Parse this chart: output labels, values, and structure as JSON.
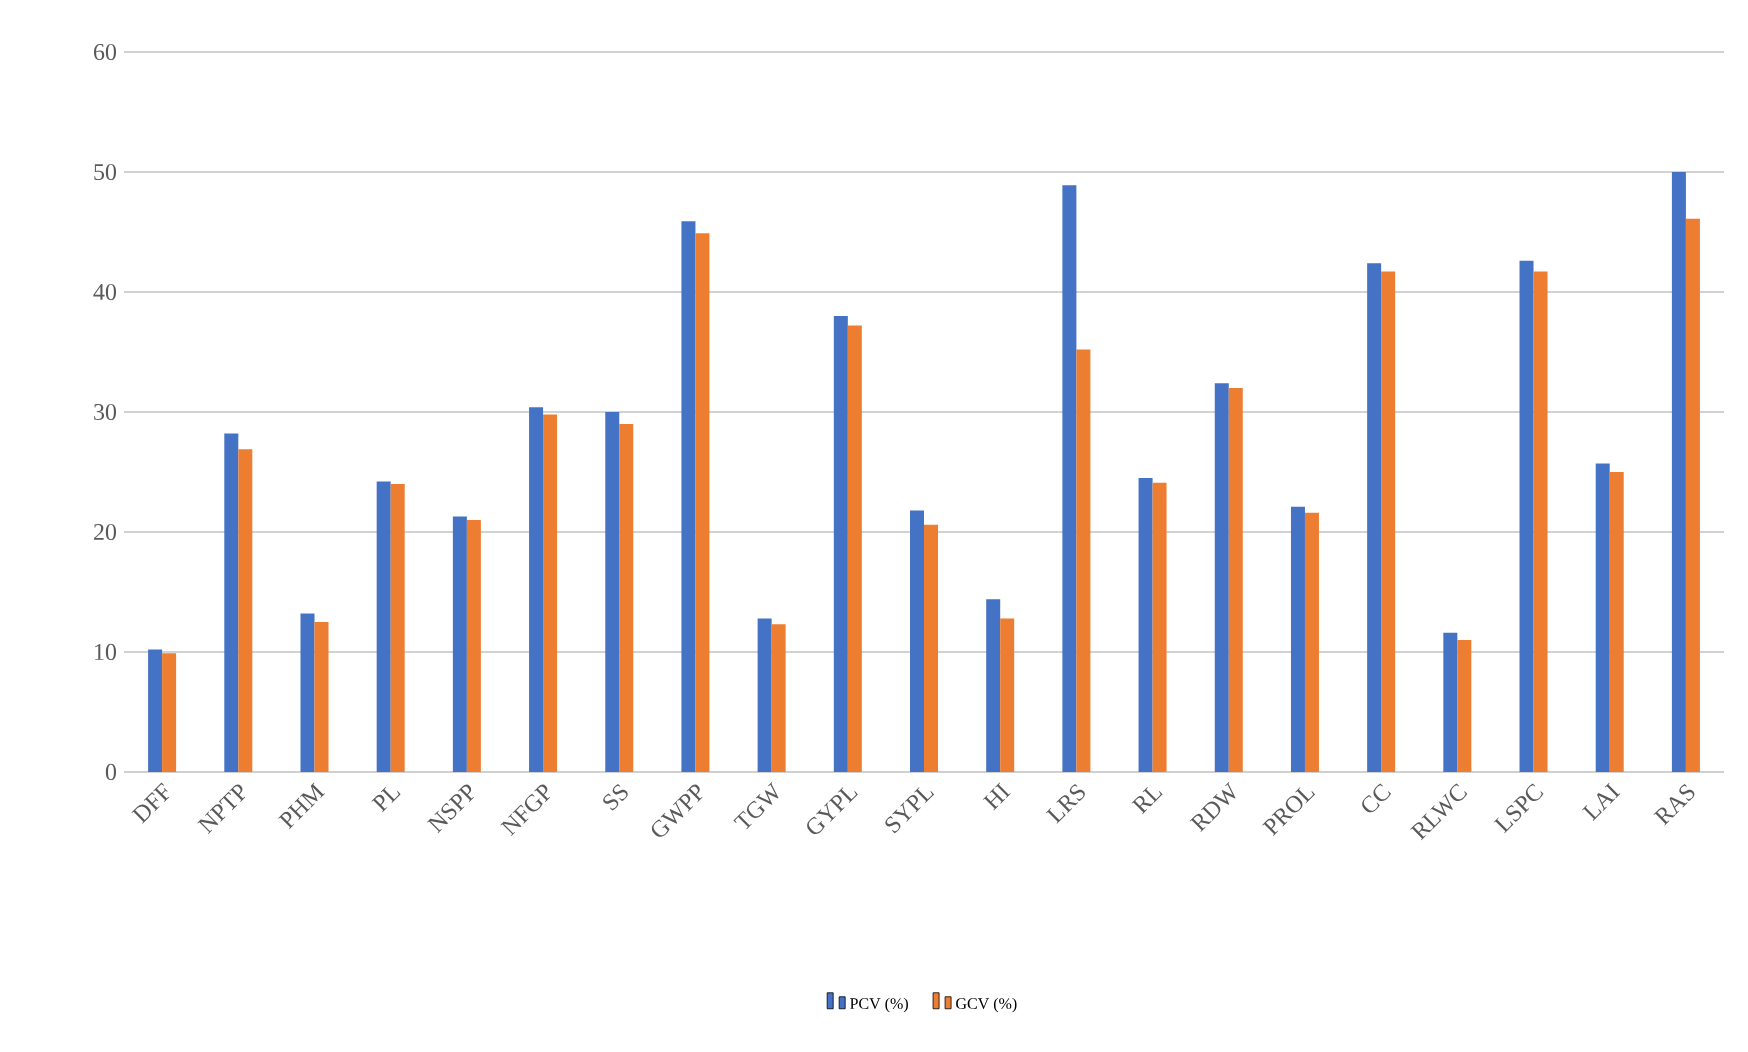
{
  "chart_data": {
    "type": "bar",
    "categories": [
      "DFF",
      "NPTP",
      "PHM",
      "PL",
      "NSPP",
      "NFGP",
      "SS",
      "GWPP",
      "TGW",
      "GYPL",
      "SYPL",
      "HI",
      "LRS",
      "RL",
      "RDW",
      "PROL",
      "CC",
      "RLWC",
      "LSPC",
      "LAI",
      "RAS"
    ],
    "series": [
      {
        "name": "PCV (%)",
        "color": "#4472c4",
        "values": [
          10.2,
          28.2,
          13.2,
          24.2,
          21.3,
          30.4,
          30.0,
          45.9,
          12.8,
          38.0,
          21.8,
          14.4,
          48.9,
          24.5,
          32.4,
          22.1,
          42.4,
          11.6,
          42.6,
          25.7,
          50.0
        ]
      },
      {
        "name": "GCV (%)",
        "color": "#ed7d31",
        "values": [
          9.9,
          26.9,
          12.5,
          24.0,
          21.0,
          29.8,
          29.0,
          44.9,
          12.3,
          37.2,
          20.6,
          12.8,
          35.2,
          24.1,
          32.0,
          21.6,
          41.7,
          11.0,
          41.7,
          25.0,
          46.1
        ]
      }
    ],
    "ylim": [
      0,
      60
    ],
    "yticks": [
      0,
      10,
      20,
      30,
      40,
      50,
      60
    ],
    "grid": "y",
    "legend": "bottom"
  }
}
